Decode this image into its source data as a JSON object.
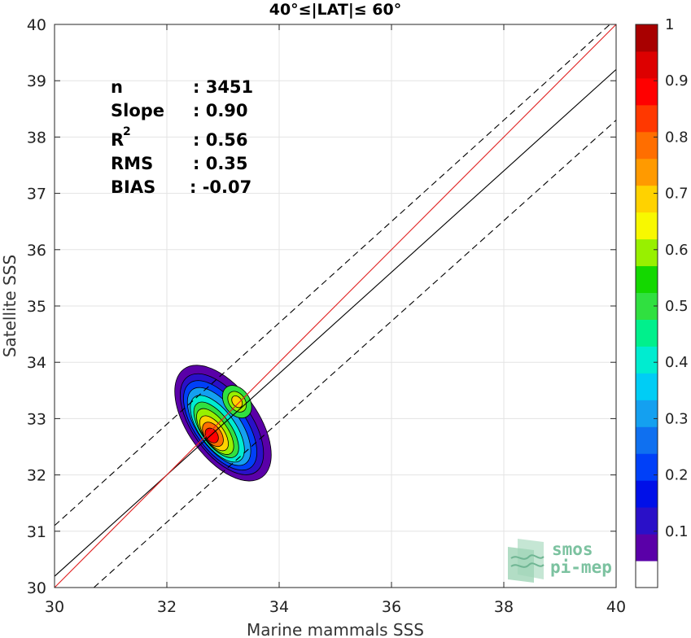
{
  "chart_data": {
    "type": "scatter",
    "title": "40°≤|LAT|≤ 60°",
    "xlabel": "Marine mammals SSS",
    "ylabel": "Satellite SSS",
    "xlim": [
      30,
      40
    ],
    "ylim": [
      30,
      40
    ],
    "xticks": [
      "30",
      "32",
      "34",
      "36",
      "38",
      "40"
    ],
    "yticks": [
      "30",
      "31",
      "32",
      "33",
      "34",
      "35",
      "36",
      "37",
      "38",
      "39",
      "40"
    ],
    "grid": true,
    "stats": {
      "n_label": "n",
      "n_value": ": 3451",
      "slope_label": "Slope",
      "slope_value": ": 0.90",
      "r2_label": "R",
      "r2_sup": "2",
      "r2_value": ": 0.56",
      "rms_label": "RMS",
      "rms_value": ": 0.35",
      "bias_label": "BIAS",
      "bias_value": ": -0.07"
    },
    "one_to_one_line": {
      "color": "#e02020",
      "x": [
        30,
        40
      ],
      "y": [
        30,
        40
      ]
    },
    "regression_line": {
      "color": "#000000",
      "x": [
        30,
        40
      ],
      "y": [
        30.2,
        39.2
      ]
    },
    "dashed_band_upper": {
      "x": [
        30,
        40
      ],
      "y": [
        31.1,
        40.1
      ]
    },
    "dashed_band_lower": {
      "x": [
        30.7,
        40
      ],
      "y": [
        30,
        38.3
      ]
    },
    "density_peak": {
      "x": 32.8,
      "y": 32.7
    },
    "density_secondary_peak": {
      "x": 33.25,
      "y": 33.3
    },
    "colorbar": {
      "ticks": [
        "0.1",
        "0.2",
        "0.3",
        "0.4",
        "0.5",
        "0.6",
        "0.7",
        "0.8",
        "0.9",
        "1"
      ],
      "range": [
        0,
        1
      ],
      "colors": [
        "#ffffff",
        "#5a00a8",
        "#2a10c8",
        "#0010e8",
        "#0040f8",
        "#0f70f0",
        "#14a0f0",
        "#00cdf5",
        "#00ecd0",
        "#00f08c",
        "#30e040",
        "#14d800",
        "#98f000",
        "#f8f800",
        "#ffd200",
        "#ff9a00",
        "#ff6e00",
        "#ff3800",
        "#ff0000",
        "#dd0000",
        "#a80000"
      ]
    },
    "contour_levels": [
      0.05,
      0.1,
      0.15,
      0.2,
      0.25,
      0.3,
      0.35,
      0.4,
      0.45,
      0.5,
      0.55,
      0.6,
      0.65,
      0.7,
      0.75,
      0.8,
      0.85,
      0.9,
      0.95
    ]
  },
  "logo": {
    "line1": "smos",
    "line2": "pi-mep"
  }
}
